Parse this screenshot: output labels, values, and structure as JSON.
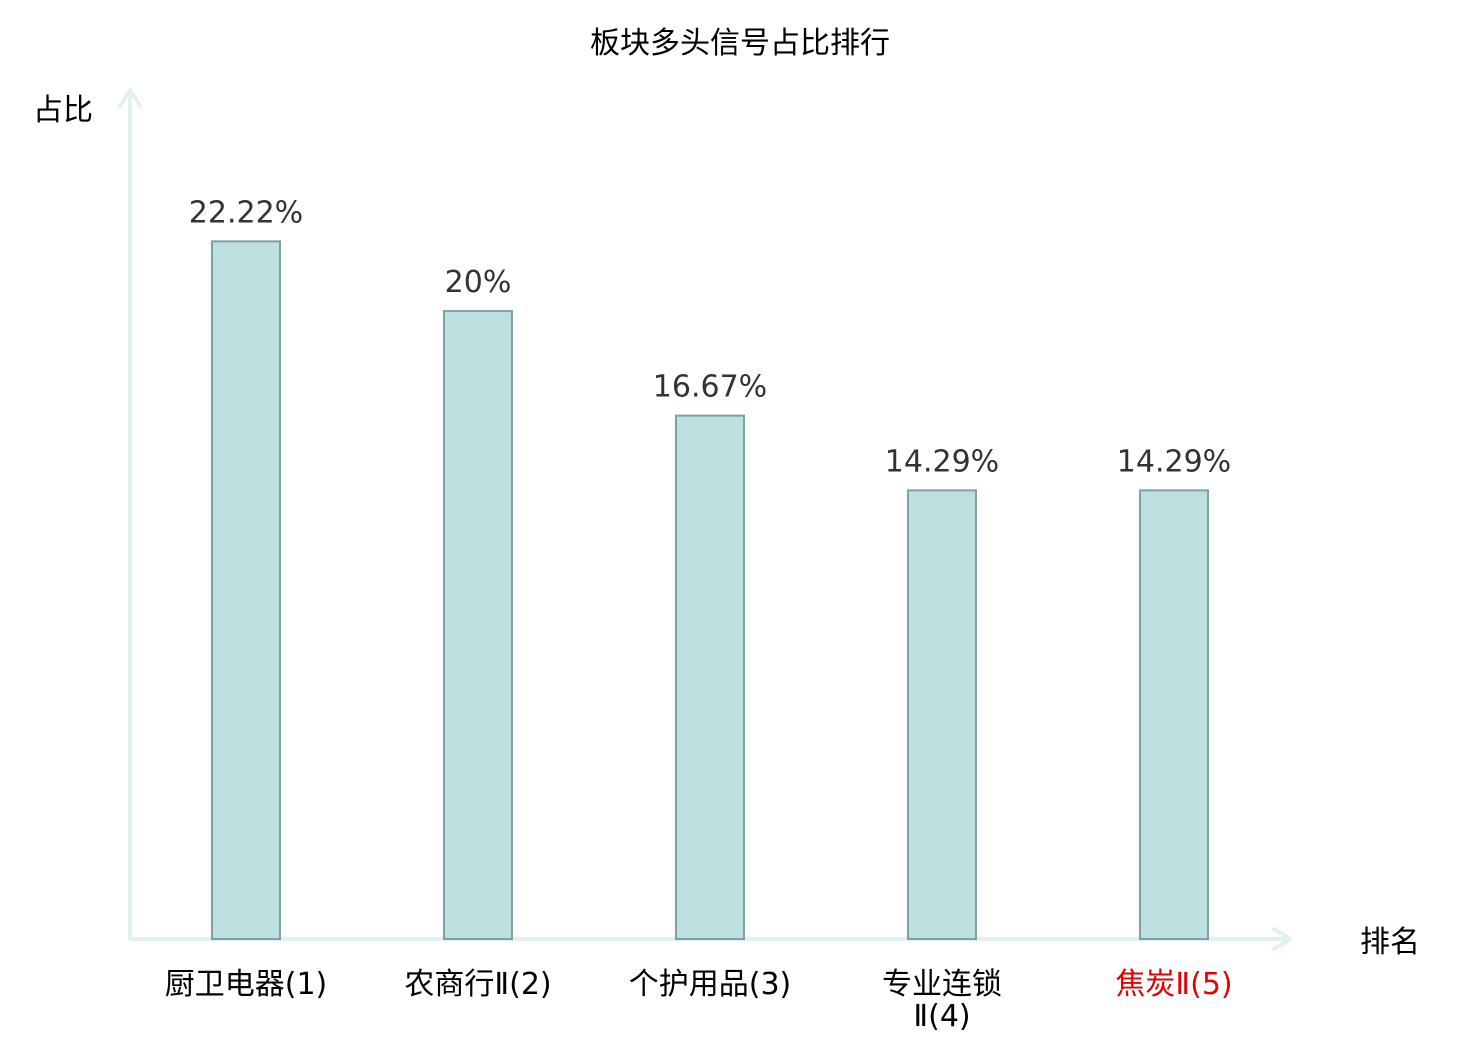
{
  "chart_data": {
    "type": "bar",
    "title": "板块多头信号占比排行",
    "ylabel": "占比",
    "xlabel": "排名",
    "categories": [
      {
        "name": "厨卫电器",
        "rank": "(1)",
        "highlight": false
      },
      {
        "name": "农商行Ⅱ",
        "rank": "(2)",
        "highlight": false
      },
      {
        "name": "个护用品",
        "rank": "(3)",
        "highlight": false
      },
      {
        "name": "专业连锁",
        "rank": "Ⅱ(4)",
        "highlight": false,
        "wrapped": true
      },
      {
        "name": "焦炭Ⅱ",
        "rank": "(5)",
        "highlight": true
      }
    ],
    "values": [
      22.22,
      20,
      16.67,
      14.29,
      14.29
    ],
    "value_labels": [
      "22.22%",
      "20%",
      "16.67%",
      "14.29%",
      "14.29%"
    ],
    "ylim": [
      0,
      24
    ],
    "grid": false,
    "legend": "none"
  },
  "colors": {
    "bar_fill": "#bde0e1",
    "bar_stroke": "#7fa0a2",
    "axis": "#dff2ef",
    "label": "#333333",
    "category": "#000000",
    "highlight": "#e60000"
  }
}
